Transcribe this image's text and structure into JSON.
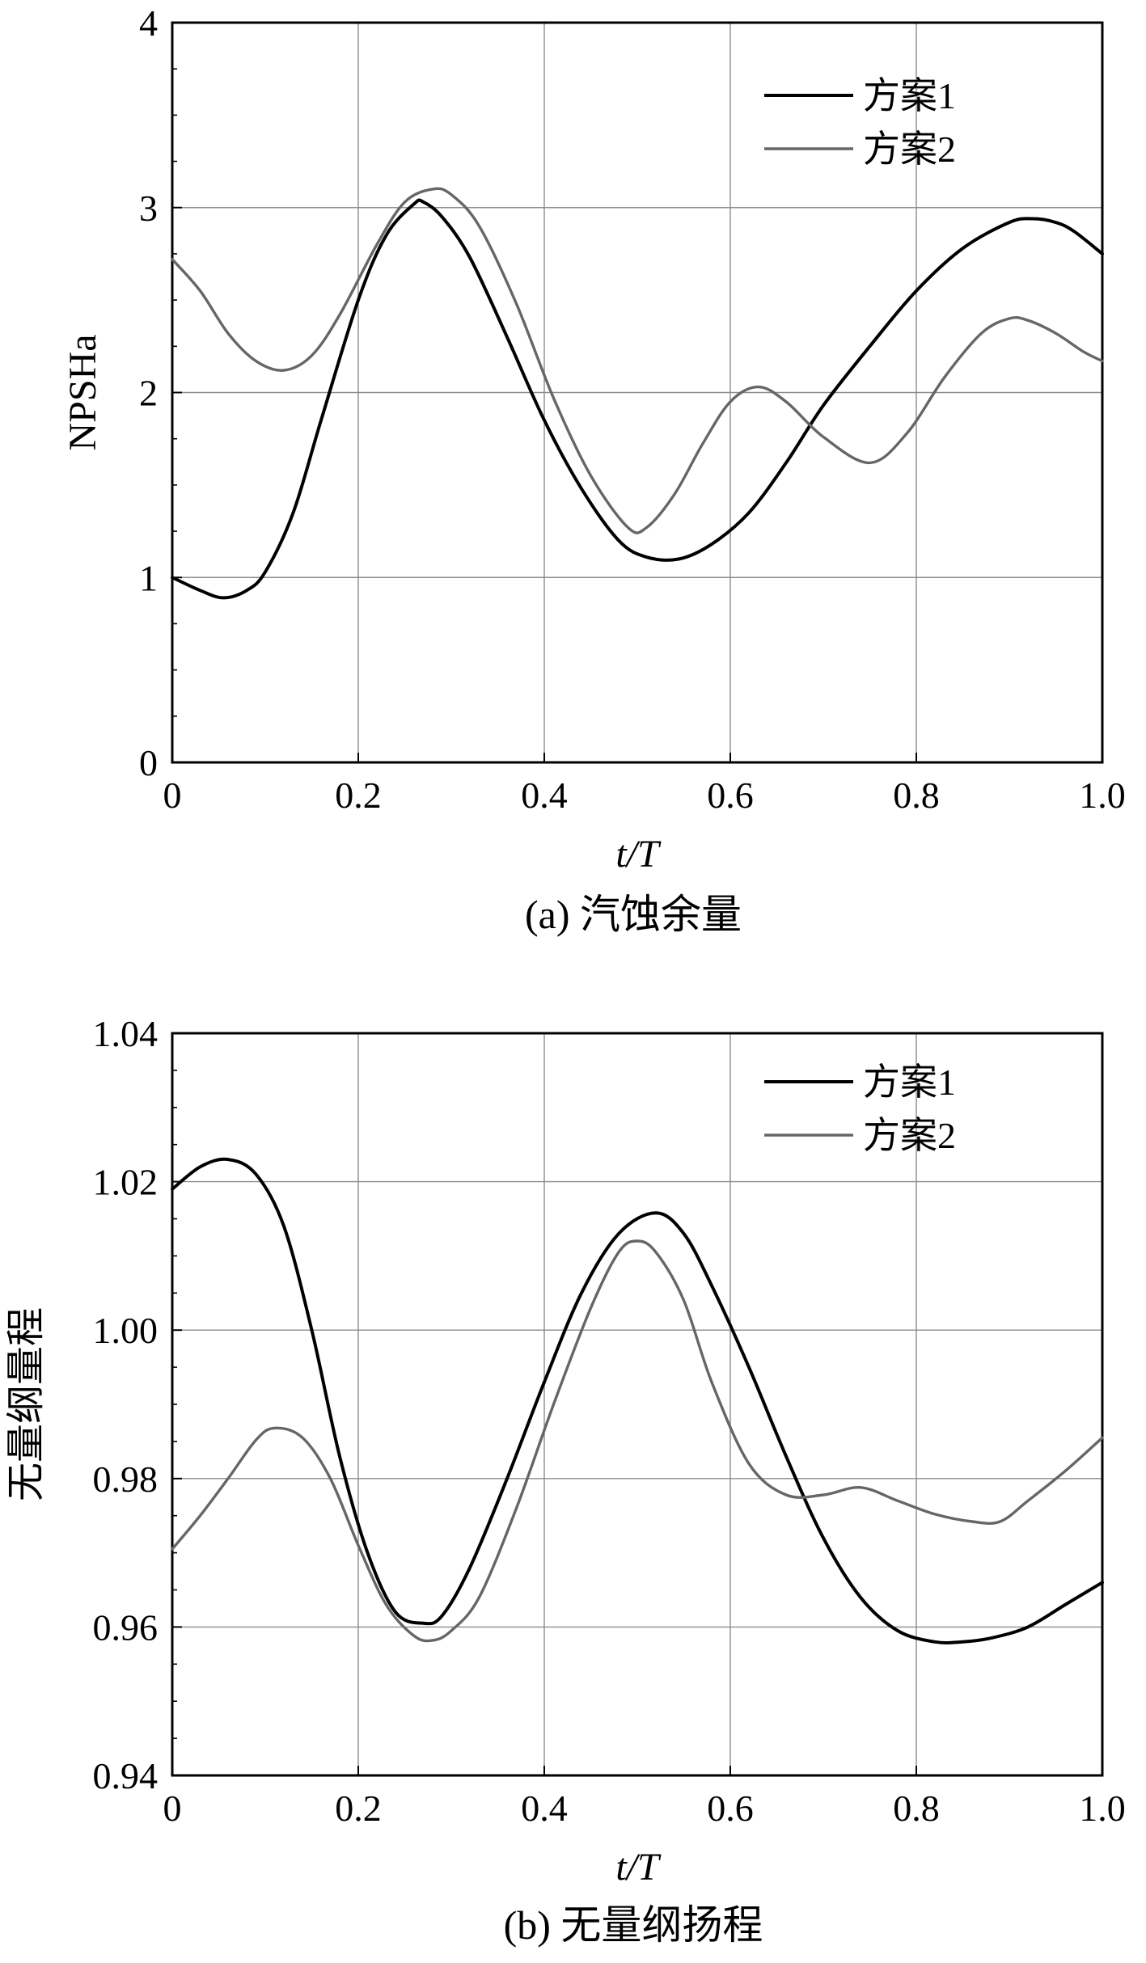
{
  "chart_data": [
    {
      "type": "line",
      "caption": "(a) 汽蚀余量",
      "xlabel": "t/T",
      "ylabel": "NPSHa",
      "xlim": [
        0,
        1
      ],
      "ylim": [
        0,
        4
      ],
      "xticks": [
        "0",
        "0.2",
        "0.4",
        "0.6",
        "0.8",
        "1.0"
      ],
      "xtick_values": [
        0,
        0.2,
        0.4,
        0.6,
        0.8,
        1.0
      ],
      "yticks": [
        "0",
        "1",
        "2",
        "3",
        "4"
      ],
      "ytick_values": [
        0,
        1,
        2,
        3,
        4
      ],
      "grid": true,
      "legend_position": "top-right",
      "series": [
        {
          "name": "方案1",
          "color": "#000000",
          "x": [
            0,
            0.03,
            0.055,
            0.08,
            0.1,
            0.13,
            0.16,
            0.2,
            0.23,
            0.26,
            0.27,
            0.29,
            0.32,
            0.36,
            0.4,
            0.44,
            0.48,
            0.51,
            0.545,
            0.58,
            0.62,
            0.66,
            0.7,
            0.75,
            0.8,
            0.85,
            0.9,
            0.925,
            0.95,
            0.97,
            1.0
          ],
          "y": [
            1.0,
            0.93,
            0.89,
            0.93,
            1.03,
            1.35,
            1.85,
            2.5,
            2.85,
            3.02,
            3.03,
            2.95,
            2.73,
            2.3,
            1.85,
            1.48,
            1.2,
            1.11,
            1.1,
            1.18,
            1.35,
            1.62,
            1.93,
            2.25,
            2.55,
            2.78,
            2.92,
            2.94,
            2.92,
            2.87,
            2.75
          ]
        },
        {
          "name": "方案2",
          "color": "#666666",
          "x": [
            0,
            0.03,
            0.06,
            0.09,
            0.12,
            0.15,
            0.18,
            0.22,
            0.25,
            0.28,
            0.3,
            0.33,
            0.37,
            0.41,
            0.45,
            0.49,
            0.51,
            0.54,
            0.57,
            0.6,
            0.63,
            0.66,
            0.7,
            0.75,
            0.79,
            0.83,
            0.87,
            0.9,
            0.92,
            0.95,
            0.98,
            1.0
          ],
          "y": [
            2.72,
            2.55,
            2.32,
            2.17,
            2.12,
            2.2,
            2.42,
            2.8,
            3.03,
            3.1,
            3.07,
            2.9,
            2.48,
            1.97,
            1.55,
            1.27,
            1.27,
            1.45,
            1.72,
            1.95,
            2.03,
            1.95,
            1.76,
            1.62,
            1.78,
            2.08,
            2.32,
            2.4,
            2.39,
            2.32,
            2.22,
            2.17
          ]
        }
      ]
    },
    {
      "type": "line",
      "caption": "(b) 无量纲扬程",
      "xlabel": "t/T",
      "ylabel": "无量纲量程",
      "xlim": [
        0,
        1
      ],
      "ylim": [
        0.94,
        1.04
      ],
      "xticks": [
        "0",
        "0.2",
        "0.4",
        "0.6",
        "0.8",
        "1.0"
      ],
      "xtick_values": [
        0,
        0.2,
        0.4,
        0.6,
        0.8,
        1.0
      ],
      "yticks": [
        "0.94",
        "0.96",
        "0.98",
        "1.00",
        "1.02",
        "1.04"
      ],
      "ytick_values": [
        0.94,
        0.96,
        0.98,
        1.0,
        1.02,
        1.04
      ],
      "grid": true,
      "legend_position": "top-right",
      "series": [
        {
          "name": "方案1",
          "color": "#000000",
          "x": [
            0,
            0.03,
            0.06,
            0.09,
            0.12,
            0.15,
            0.18,
            0.21,
            0.24,
            0.27,
            0.29,
            0.32,
            0.36,
            0.4,
            0.44,
            0.48,
            0.52,
            0.55,
            0.58,
            0.62,
            0.66,
            0.7,
            0.74,
            0.78,
            0.82,
            0.85,
            0.88,
            0.92,
            0.96,
            1.0
          ],
          "y": [
            1.019,
            1.022,
            1.023,
            1.021,
            1.014,
            1.0,
            0.983,
            0.97,
            0.962,
            0.9605,
            0.9615,
            0.968,
            0.98,
            0.993,
            1.005,
            1.013,
            1.0158,
            1.013,
            1.006,
            0.995,
            0.983,
            0.972,
            0.964,
            0.9595,
            0.958,
            0.958,
            0.9585,
            0.96,
            0.963,
            0.966
          ]
        },
        {
          "name": "方案2",
          "color": "#666666",
          "x": [
            0,
            0.03,
            0.06,
            0.09,
            0.11,
            0.14,
            0.17,
            0.2,
            0.23,
            0.26,
            0.28,
            0.3,
            0.33,
            0.37,
            0.41,
            0.45,
            0.48,
            0.5,
            0.52,
            0.55,
            0.58,
            0.62,
            0.66,
            0.7,
            0.74,
            0.78,
            0.82,
            0.86,
            0.89,
            0.92,
            0.96,
            1.0
          ],
          "y": [
            0.9705,
            0.975,
            0.98,
            0.9852,
            0.9868,
            0.9855,
            0.98,
            0.971,
            0.963,
            0.9588,
            0.9582,
            0.9595,
            0.964,
            0.976,
            0.99,
            1.003,
            1.0105,
            1.012,
            1.0105,
            1.004,
            0.993,
            0.982,
            0.9778,
            0.9778,
            0.9788,
            0.977,
            0.9752,
            0.9742,
            0.9742,
            0.977,
            0.981,
            0.9855
          ]
        }
      ]
    }
  ]
}
